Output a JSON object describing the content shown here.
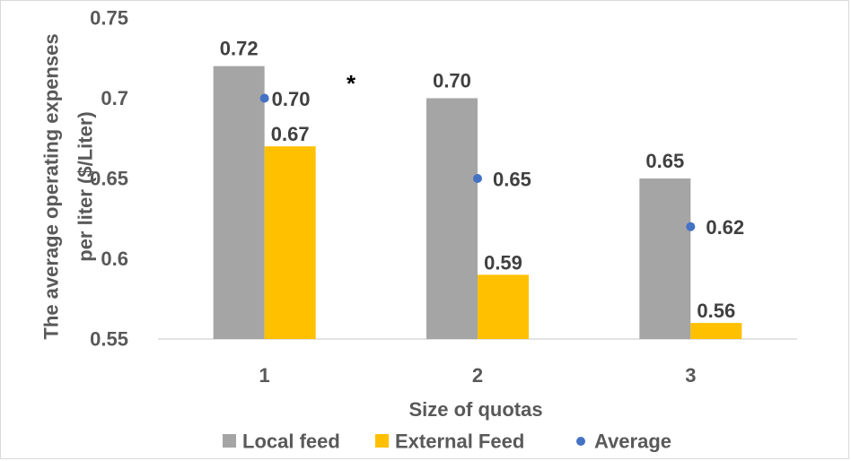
{
  "chart_data": {
    "type": "bar",
    "categories": [
      "1",
      "2",
      "3"
    ],
    "series": [
      {
        "name": "Local feed",
        "kind": "bar",
        "color": "#a5a5a5",
        "values": [
          0.72,
          0.7,
          0.65
        ],
        "labels": [
          "0.72",
          "0.70",
          "0.65"
        ]
      },
      {
        "name": "External Feed",
        "kind": "bar",
        "color": "#ffc000",
        "values": [
          0.67,
          0.59,
          0.56
        ],
        "labels": [
          "0.67",
          "0.59",
          "0.56"
        ]
      },
      {
        "name": "Average",
        "kind": "scatter",
        "color": "#4472c4",
        "values": [
          0.7,
          0.65,
          0.62
        ],
        "labels": [
          "0.70",
          "0.65",
          "0.62"
        ]
      }
    ],
    "xlabel": "Size of quotas",
    "ylabel_lines": [
      "The average operating expenses",
      "per liter ($/Liter)"
    ],
    "ylim": [
      0.55,
      0.75
    ],
    "yticks": [
      "0.55",
      "0.6",
      "0.65",
      "0.7",
      "0.75"
    ],
    "annotation": "*",
    "grid": false,
    "legend_position": "bottom"
  }
}
